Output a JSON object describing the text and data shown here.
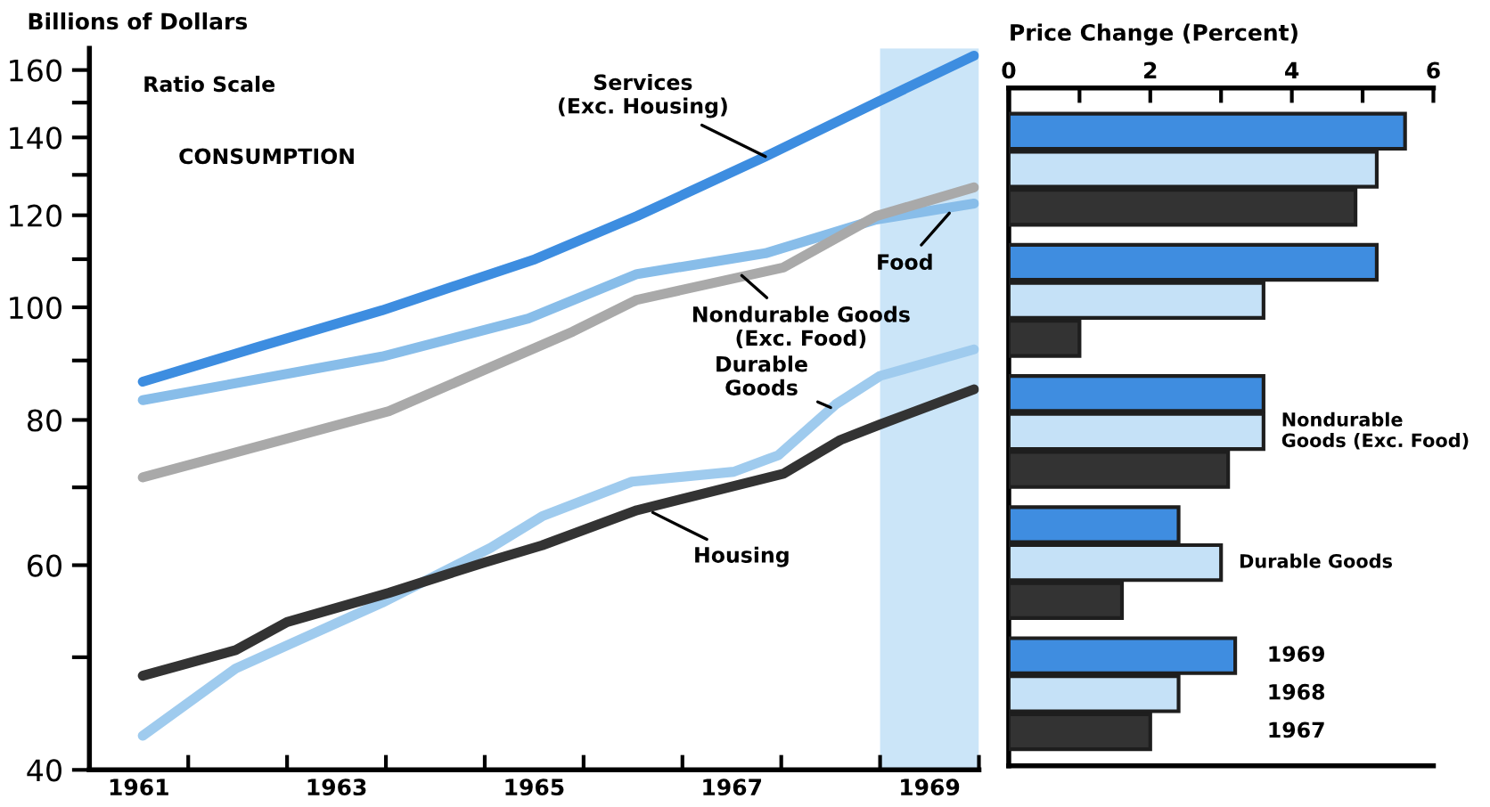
{
  "chart_data": [
    {
      "type": "line",
      "log": "y",
      "ylabel": "Billions of Dollars",
      "xlim": [
        1961,
        1970
      ],
      "ylim": [
        40,
        167
      ],
      "xticks": [
        {
          "value": 1962,
          "label": null
        },
        {
          "value": 1963,
          "label": null
        },
        {
          "value": 1964,
          "label": null
        },
        {
          "value": 1965,
          "label": null
        },
        {
          "value": 1966,
          "label": null
        },
        {
          "value": 1967,
          "label": null
        },
        {
          "value": 1968,
          "label": null
        },
        {
          "value": 1969,
          "label": null
        },
        {
          "value": 1970,
          "label": null
        },
        {
          "value": 1961.5,
          "label": "1961"
        },
        {
          "value": 1963.5,
          "label": "1963"
        },
        {
          "value": 1965.5,
          "label": "1965"
        },
        {
          "value": 1967.5,
          "label": "1967"
        },
        {
          "value": 1969.5,
          "label": "1969"
        }
      ],
      "yticks": [
        40,
        {
          "value": 50,
          "label": null
        },
        60,
        {
          "value": 70,
          "label": null
        },
        80,
        {
          "value": 90,
          "label": null
        },
        100,
        {
          "value": 110,
          "label": null
        },
        120,
        {
          "value": 130,
          "label": null
        },
        140,
        {
          "value": 150,
          "label": null
        },
        160
      ],
      "bands": [
        {
          "axis": "x",
          "from": 1969,
          "to": 1970,
          "color": "#cbe5f8"
        }
      ],
      "annotations": [
        "Ratio Scale",
        "CONSUMPTION"
      ],
      "series": [
        {
          "name": "Services\n(Exc. Housing)",
          "color": "#3d8de0",
          "x": [
            1961.54,
            1962.68,
            1963.96,
            1965.51,
            1966.54,
            1967.84,
            1968.96,
            1969.95
          ],
          "values": [
            86.3,
            92.3,
            99.4,
            110,
            119.8,
            134.8,
            150,
            164.6
          ]
        },
        {
          "name": "Food",
          "color": "#88bde9",
          "x": [
            1961.54,
            1963.96,
            1965.44,
            1966.54,
            1967.84,
            1968.96,
            1969.95
          ],
          "values": [
            83.2,
            90.7,
            97.8,
            106.8,
            111.3,
            119,
            122.8
          ]
        },
        {
          "name": "Nondurable Goods\n(Exc. Food)",
          "color": "#a9a9a9",
          "x": [
            1961.54,
            1964.03,
            1965.89,
            1966.54,
            1968.02,
            1968.96,
            1969.95
          ],
          "values": [
            71.4,
            81.4,
            95.3,
            101.5,
            108.2,
            119.8,
            126.8
          ]
        },
        {
          "name": "Durable\nGoods",
          "color": "#9fcbee",
          "x": [
            1961.54,
            1962.48,
            1963.96,
            1965.06,
            1965.58,
            1966.49,
            1967.52,
            1967.97,
            1968.55,
            1969.0,
            1969.95
          ],
          "values": [
            42.8,
            48.9,
            55.7,
            62.1,
            66.1,
            70.8,
            72.2,
            74.6,
            82.5,
            87.3,
            92.0
          ]
        },
        {
          "name": "Housing",
          "color": "#333333",
          "x": [
            1961.54,
            1962.48,
            1963.0,
            1964.03,
            1964.99,
            1965.58,
            1966.54,
            1968.02,
            1968.6,
            1969.0,
            1969.95
          ],
          "values": [
            48.2,
            50.7,
            53.6,
            56.8,
            60.3,
            62.4,
            66.9,
            71.9,
            76.9,
            79.3,
            85
          ]
        }
      ]
    },
    {
      "type": "bar",
      "orientation": "horizontal",
      "xlabel": "Price Change (Percent)",
      "xlim": [
        0,
        6
      ],
      "xticks": [
        0,
        {
          "value": 1,
          "label": null
        },
        2,
        {
          "value": 3,
          "label": null
        },
        4,
        {
          "value": 5,
          "label": null
        },
        6
      ],
      "categories": [
        null,
        null,
        "Nondurable\nGoods (Exc. Food)",
        "Durable Goods",
        null
      ],
      "series": [
        {
          "name": "1969",
          "color": "#3f8de0",
          "values": [
            5.6,
            5.2,
            3.6,
            2.4,
            3.2
          ]
        },
        {
          "name": "1968",
          "color": "#c5e1f7",
          "values": [
            5.2,
            3.6,
            3.6,
            3.0,
            2.4
          ]
        },
        {
          "name": "1967",
          "color": "#333333",
          "values": [
            4.9,
            1.0,
            3.1,
            1.6,
            2.0
          ]
        }
      ]
    }
  ]
}
